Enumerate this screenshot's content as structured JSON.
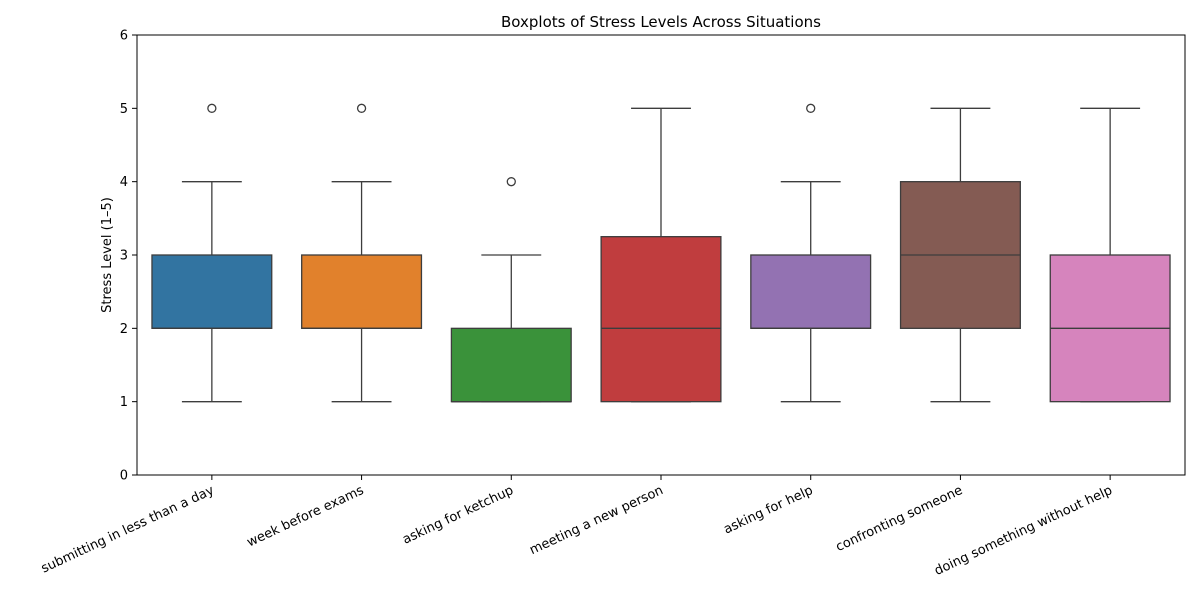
{
  "chart_data": {
    "type": "boxplot",
    "title": "Boxplots of Stress Levels Across Situations",
    "xlabel": "",
    "ylabel": "Stress Level (1–5)",
    "ylim": [
      0,
      6
    ],
    "yticks": [
      0,
      1,
      2,
      3,
      4,
      5,
      6
    ],
    "grid": false,
    "legend": "none",
    "categories": [
      "submitting in less than a day",
      "week before exams",
      "asking for ketchup",
      "meeting a new person",
      "asking for help",
      "confronting someone",
      "doing something without help"
    ],
    "boxes": [
      {
        "whisker_low": 1,
        "q1": 2,
        "median": 2,
        "q3": 3,
        "whisker_high": 4,
        "outliers": [
          5
        ],
        "color": "#3274a1"
      },
      {
        "whisker_low": 1,
        "q1": 2,
        "median": 2,
        "q3": 3,
        "whisker_high": 4,
        "outliers": [
          5
        ],
        "color": "#e1812c"
      },
      {
        "whisker_low": 1,
        "q1": 1,
        "median": 1,
        "q3": 2,
        "whisker_high": 3,
        "outliers": [
          4
        ],
        "color": "#3a923a"
      },
      {
        "whisker_low": 1,
        "q1": 1,
        "median": 2,
        "q3": 3.25,
        "whisker_high": 5,
        "outliers": [],
        "color": "#c03d3e"
      },
      {
        "whisker_low": 1,
        "q1": 2,
        "median": 2,
        "q3": 3,
        "whisker_high": 4,
        "outliers": [
          5
        ],
        "color": "#9372b2"
      },
      {
        "whisker_low": 1,
        "q1": 2,
        "median": 3,
        "q3": 4,
        "whisker_high": 5,
        "outliers": [],
        "color": "#845b53"
      },
      {
        "whisker_low": 1,
        "q1": 1,
        "median": 2,
        "q3": 3,
        "whisker_high": 5,
        "outliers": [],
        "color": "#d684bd"
      }
    ]
  }
}
